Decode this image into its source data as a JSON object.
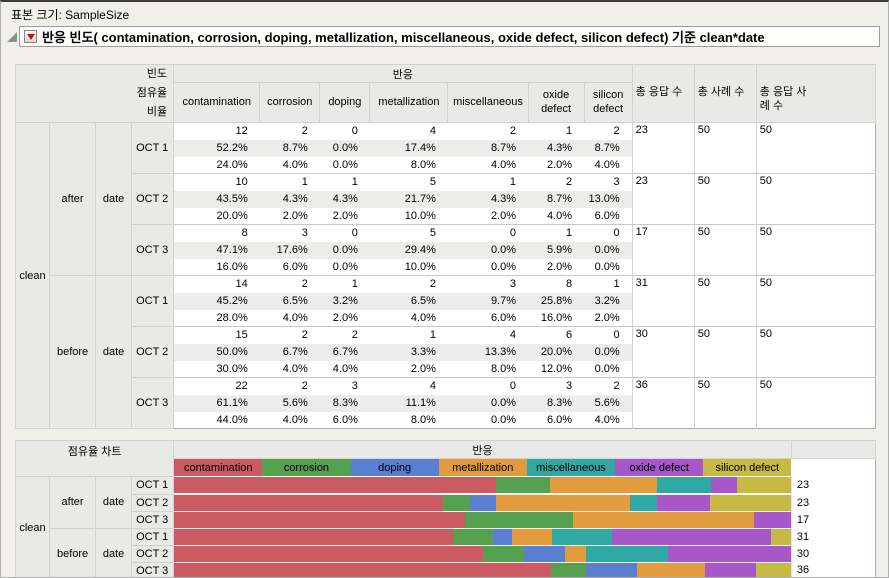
{
  "page": {
    "sample_size_label": "표본 크기: SampleSize",
    "outline_title": "반응 빈도( contamination, corrosion, doping, metallization, miscellaneous,  oxide defect, silicon defect) 기준 clean*date"
  },
  "freq_table": {
    "stat_labels": [
      "빈도",
      "점유율",
      "비율"
    ],
    "response_header": "반응",
    "response_columns": [
      "contamination",
      "corrosion",
      "doping",
      "metallization",
      "miscellaneous",
      "oxide defect",
      "silicon defect"
    ],
    "total_columns": [
      "총 응답 수",
      "총 사례 수",
      "총 응답 사례 수"
    ],
    "row_dimension": "clean",
    "groups": [
      {
        "clean": "after",
        "dim": "date",
        "rows": [
          {
            "date": "OCT 1",
            "counts": [
              "12",
              "2",
              "0",
              "4",
              "2",
              "1",
              "2"
            ],
            "share": [
              "52.2%",
              "8.7%",
              "0.0%",
              "17.4%",
              "8.7%",
              "4.3%",
              "8.7%"
            ],
            "rate": [
              "24.0%",
              "4.0%",
              "0.0%",
              "8.0%",
              "4.0%",
              "2.0%",
              "4.0%"
            ],
            "totals": [
              "23",
              "50",
              "50"
            ]
          },
          {
            "date": "OCT 2",
            "counts": [
              "10",
              "1",
              "1",
              "5",
              "1",
              "2",
              "3"
            ],
            "share": [
              "43.5%",
              "4.3%",
              "4.3%",
              "21.7%",
              "4.3%",
              "8.7%",
              "13.0%"
            ],
            "rate": [
              "20.0%",
              "2.0%",
              "2.0%",
              "10.0%",
              "2.0%",
              "4.0%",
              "6.0%"
            ],
            "totals": [
              "23",
              "50",
              "50"
            ]
          },
          {
            "date": "OCT 3",
            "counts": [
              "8",
              "3",
              "0",
              "5",
              "0",
              "1",
              "0"
            ],
            "share": [
              "47.1%",
              "17.6%",
              "0.0%",
              "29.4%",
              "0.0%",
              "5.9%",
              "0.0%"
            ],
            "rate": [
              "16.0%",
              "6.0%",
              "0.0%",
              "10.0%",
              "0.0%",
              "2.0%",
              "0.0%"
            ],
            "totals": [
              "17",
              "50",
              "50"
            ]
          }
        ]
      },
      {
        "clean": "before",
        "dim": "date",
        "rows": [
          {
            "date": "OCT 1",
            "counts": [
              "14",
              "2",
              "1",
              "2",
              "3",
              "8",
              "1"
            ],
            "share": [
              "45.2%",
              "6.5%",
              "3.2%",
              "6.5%",
              "9.7%",
              "25.8%",
              "3.2%"
            ],
            "rate": [
              "28.0%",
              "4.0%",
              "2.0%",
              "4.0%",
              "6.0%",
              "16.0%",
              "2.0%"
            ],
            "totals": [
              "31",
              "50",
              "50"
            ]
          },
          {
            "date": "OCT 2",
            "counts": [
              "15",
              "2",
              "2",
              "1",
              "4",
              "6",
              "0"
            ],
            "share": [
              "50.0%",
              "6.7%",
              "6.7%",
              "3.3%",
              "13.3%",
              "20.0%",
              "0.0%"
            ],
            "rate": [
              "30.0%",
              "4.0%",
              "4.0%",
              "2.0%",
              "8.0%",
              "12.0%",
              "0.0%"
            ],
            "totals": [
              "30",
              "50",
              "50"
            ]
          },
          {
            "date": "OCT 3",
            "counts": [
              "22",
              "2",
              "3",
              "4",
              "0",
              "3",
              "2"
            ],
            "share": [
              "61.1%",
              "5.6%",
              "8.3%",
              "11.1%",
              "0.0%",
              "8.3%",
              "5.6%"
            ],
            "rate": [
              "44.0%",
              "4.0%",
              "6.0%",
              "8.0%",
              "0.0%",
              "6.0%",
              "4.0%"
            ],
            "totals": [
              "36",
              "50",
              "50"
            ]
          }
        ]
      }
    ]
  },
  "share_chart": {
    "title": "점유율 차트",
    "response_header": "반응",
    "row_dimension": "clean",
    "chart_data": {
      "type": "bar",
      "stacked": true,
      "orientation": "horizontal",
      "series": [
        "contamination",
        "corrosion",
        "doping",
        "metallization",
        "miscellaneous",
        "oxide defect",
        "silicon defect"
      ],
      "series_colors": [
        "#cb5a63",
        "#55a14f",
        "#5a7fd2",
        "#e29b3d",
        "#30a8a3",
        "#a757c9",
        "#c6ba45"
      ],
      "xlim": [
        0,
        100
      ],
      "rows": [
        {
          "clean": "after",
          "dim": "date",
          "date": "OCT 1",
          "share_pct": [
            52.2,
            8.7,
            0.0,
            17.4,
            8.7,
            4.3,
            8.7
          ],
          "total": "23"
        },
        {
          "clean": "after",
          "dim": "date",
          "date": "OCT 2",
          "share_pct": [
            43.5,
            4.3,
            4.3,
            21.7,
            4.3,
            8.7,
            13.0
          ],
          "total": "23"
        },
        {
          "clean": "after",
          "dim": "date",
          "date": "OCT 3",
          "share_pct": [
            47.1,
            17.6,
            0.0,
            29.4,
            0.0,
            5.9,
            0.0
          ],
          "total": "17"
        },
        {
          "clean": "before",
          "dim": "date",
          "date": "OCT 1",
          "share_pct": [
            45.2,
            6.5,
            3.2,
            6.5,
            9.7,
            25.8,
            3.2
          ],
          "total": "31"
        },
        {
          "clean": "before",
          "dim": "date",
          "date": "OCT 2",
          "share_pct": [
            50.0,
            6.7,
            6.7,
            3.3,
            13.3,
            20.0,
            0.0
          ],
          "total": "30"
        },
        {
          "clean": "before",
          "dim": "date",
          "date": "OCT 3",
          "share_pct": [
            61.1,
            5.6,
            8.3,
            11.1,
            0.0,
            8.3,
            5.6
          ],
          "total": "36"
        }
      ]
    }
  }
}
